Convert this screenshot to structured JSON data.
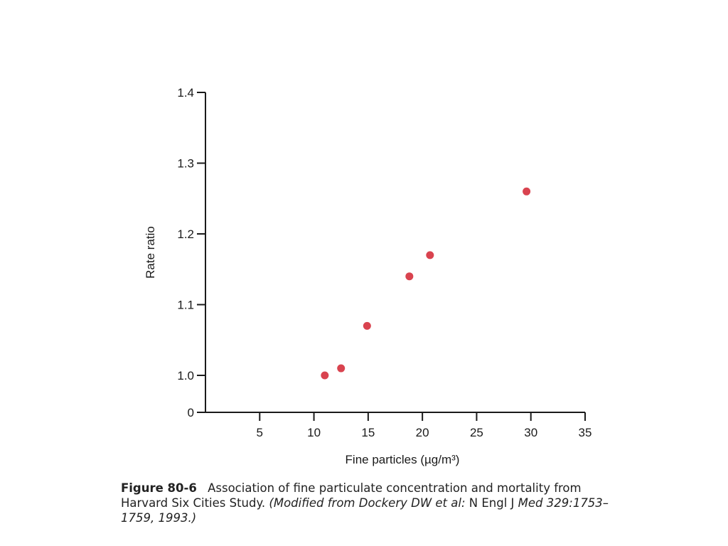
{
  "chart_data": {
    "type": "scatter",
    "title": "",
    "xlabel": "Fine particles (µg/m³)",
    "ylabel": "Rate ratio",
    "xlim": [
      0,
      35
    ],
    "x_ticks": [
      5,
      10,
      15,
      20,
      25,
      30,
      35
    ],
    "y_ticks": [
      {
        "value": 0,
        "label": "0"
      },
      {
        "value": 1.0,
        "label": "1.0"
      },
      {
        "value": 1.1,
        "label": "1.1"
      },
      {
        "value": 1.2,
        "label": "1.2"
      },
      {
        "value": 1.3,
        "label": "1.3"
      },
      {
        "value": 1.4,
        "label": "1.4"
      }
    ],
    "y_axis_break": "0 to 1.0",
    "grid": false,
    "marker_color": "#d9434f",
    "points": [
      {
        "x": 11.0,
        "y": 1.0
      },
      {
        "x": 12.5,
        "y": 1.01
      },
      {
        "x": 14.9,
        "y": 1.07
      },
      {
        "x": 18.8,
        "y": 1.14
      },
      {
        "x": 20.7,
        "y": 1.17
      },
      {
        "x": 29.6,
        "y": 1.26
      }
    ]
  },
  "caption": {
    "figure_number": "Figure 80-6",
    "text": "Association of fine particulate concentration and mortality from Harvard Six Cities Study.",
    "source_prefix": "(Modified from Dockery DW et al:",
    "source_journal": "N Engl J",
    "source_rest": "Med 329:1753–1759, 1993.)"
  }
}
